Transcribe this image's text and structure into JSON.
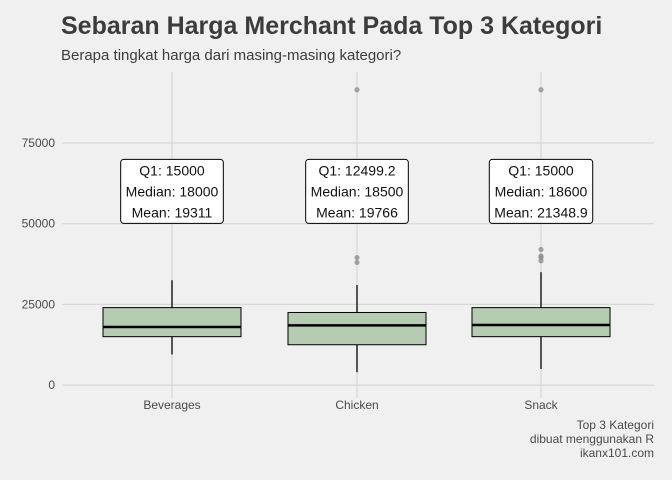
{
  "header": {
    "title": "Sebaran Harga Merchant Pada Top 3 Kategori",
    "subtitle": "Berapa tingkat harga dari masing-masing kategori?"
  },
  "caption": {
    "line1": "Top 3 Kategori",
    "line2": "dibuat menggunakan R",
    "line3": "ikanx101.com"
  },
  "colors": {
    "background": "#f0f0f0",
    "grid": "#d2d2d2",
    "box_fill": "#b5ccb3",
    "outlier": "#8a8a8a"
  },
  "chart_data": {
    "type": "boxplot",
    "title": "Sebaran Harga Merchant Pada Top 3 Kategori",
    "subtitle": "Berapa tingkat harga dari masing-masing kategori?",
    "xlabel": "",
    "ylabel": "",
    "ylim": [
      -4000,
      97000
    ],
    "yticks": [
      0,
      25000,
      50000,
      75000
    ],
    "ytick_labels": [
      "0",
      "25000",
      "50000",
      "75000"
    ],
    "grid": true,
    "categories": [
      "Beverages",
      "Chicken",
      "Snack"
    ],
    "boxes": [
      {
        "category": "Beverages",
        "whisker_low": 9500,
        "q1": 15000,
        "median": 18000,
        "q3": 24000,
        "whisker_high": 32500,
        "outliers": []
      },
      {
        "category": "Chicken",
        "whisker_low": 4000,
        "q1": 12500,
        "median": 18500,
        "q3": 22500,
        "whisker_high": 31000,
        "outliers": [
          38000,
          39500,
          91500
        ]
      },
      {
        "category": "Snack",
        "whisker_low": 5000,
        "q1": 15000,
        "median": 18600,
        "q3": 24000,
        "whisker_high": 35000,
        "outliers": [
          38500,
          39500,
          40000,
          42000,
          91500
        ]
      }
    ],
    "annotations": [
      {
        "category": "Beverages",
        "lines": [
          "Q1: 15000",
          "Median: 18000",
          "Mean: 19311"
        ]
      },
      {
        "category": "Chicken",
        "lines": [
          "Q1: 12499.2",
          "Median: 18500",
          "Mean: 19766"
        ]
      },
      {
        "category": "Snack",
        "lines": [
          "Q1: 15000",
          "Median: 18600",
          "Mean: 21348.9"
        ]
      }
    ],
    "annotation_anchor_value": 60000
  }
}
